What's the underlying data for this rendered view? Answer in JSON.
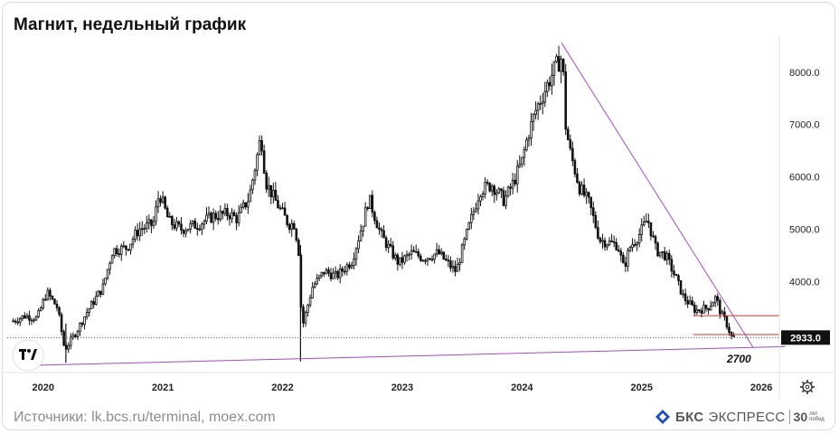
{
  "title": "Магнит, недельный график",
  "source": "Источники: lk.bcs.ru/terminal, moex.com",
  "brand": {
    "bks": "БКС",
    "express": "ЭКСПРЕСС",
    "anniversary": "30",
    "anniversary_sub": "лет побед"
  },
  "icons": {
    "logo": "tradingview-logo-icon",
    "settings": "gear-icon",
    "brand": "bks-logo-icon"
  },
  "colors": {
    "trendline": "#a24dc1",
    "support": "#c0392b",
    "candle": "#111111",
    "background": "#ffffff"
  },
  "chart_data": {
    "type": "candlestick",
    "timeframe": "weekly",
    "instrument": "Магнит",
    "x_ticks": [
      "2020",
      "2021",
      "2022",
      "2023",
      "2024",
      "2025",
      "2026"
    ],
    "y_ticks": [
      "4000.0",
      "5000.0",
      "6000.0",
      "7000.0",
      "8000.0"
    ],
    "ylim": [
      2300,
      8600
    ],
    "xlim": [
      2019.7,
      2026.15
    ],
    "last_price": 2933.0,
    "last_price_label": "2933.0",
    "annotations": [
      {
        "text": "2700",
        "x": 2025.75,
        "y": 2700
      }
    ],
    "horizontal_levels": [
      3350,
      2990
    ],
    "trendlines": [
      {
        "name": "",
        "from": [
          2019.88,
          2400
        ],
        "to": [
          2026.2,
          2760
        ]
      },
      {
        "name": "",
        "from": [
          2024.33,
          8560
        ],
        "to": [
          2025.93,
          2750
        ]
      }
    ],
    "close_path": [
      [
        2019.75,
        3250
      ],
      [
        2019.85,
        3350
      ],
      [
        2019.95,
        3300
      ],
      [
        2020.03,
        3800
      ],
      [
        2020.12,
        3500
      ],
      [
        2020.18,
        2700
      ],
      [
        2020.28,
        3050
      ],
      [
        2020.36,
        3400
      ],
      [
        2020.5,
        3900
      ],
      [
        2020.58,
        4600
      ],
      [
        2020.7,
        4650
      ],
      [
        2020.8,
        5000
      ],
      [
        2020.92,
        5100
      ],
      [
        2020.97,
        5700
      ],
      [
        2021.05,
        5150
      ],
      [
        2021.15,
        5000
      ],
      [
        2021.3,
        5100
      ],
      [
        2021.42,
        5250
      ],
      [
        2021.55,
        5300
      ],
      [
        2021.62,
        5200
      ],
      [
        2021.72,
        5600
      ],
      [
        2021.78,
        6300
      ],
      [
        2021.82,
        6800
      ],
      [
        2021.86,
        5900
      ],
      [
        2021.95,
        5500
      ],
      [
        2022.05,
        5100
      ],
      [
        2022.1,
        5100
      ],
      [
        2022.14,
        4500
      ],
      [
        2022.16,
        3100
      ],
      [
        2022.25,
        3900
      ],
      [
        2022.35,
        4200
      ],
      [
        2022.45,
        4100
      ],
      [
        2022.58,
        4400
      ],
      [
        2022.68,
        5200
      ],
      [
        2022.72,
        5600
      ],
      [
        2022.82,
        4900
      ],
      [
        2022.9,
        4600
      ],
      [
        2022.97,
        4350
      ],
      [
        2023.08,
        4550
      ],
      [
        2023.18,
        4450
      ],
      [
        2023.3,
        4550
      ],
      [
        2023.42,
        4250
      ],
      [
        2023.45,
        4200
      ],
      [
        2023.55,
        5000
      ],
      [
        2023.65,
        5750
      ],
      [
        2023.75,
        5850
      ],
      [
        2023.85,
        5550
      ],
      [
        2023.92,
        5850
      ],
      [
        2024.0,
        6300
      ],
      [
        2024.05,
        6800
      ],
      [
        2024.12,
        7300
      ],
      [
        2024.2,
        7700
      ],
      [
        2024.28,
        8100
      ],
      [
        2024.34,
        8300
      ],
      [
        2024.36,
        7050
      ],
      [
        2024.4,
        6500
      ],
      [
        2024.48,
        5800
      ],
      [
        2024.56,
        5500
      ],
      [
        2024.65,
        4800
      ],
      [
        2024.72,
        4750
      ],
      [
        2024.8,
        4700
      ],
      [
        2024.85,
        4250
      ],
      [
        2024.9,
        4650
      ],
      [
        2024.98,
        4900
      ],
      [
        2025.05,
        5200
      ],
      [
        2025.12,
        4600
      ],
      [
        2025.2,
        4500
      ],
      [
        2025.28,
        4100
      ],
      [
        2025.35,
        3700
      ],
      [
        2025.45,
        3450
      ],
      [
        2025.55,
        3500
      ],
      [
        2025.62,
        3700
      ],
      [
        2025.66,
        3400
      ],
      [
        2025.7,
        3250
      ],
      [
        2025.75,
        2950
      ],
      [
        2025.78,
        2933
      ]
    ]
  }
}
